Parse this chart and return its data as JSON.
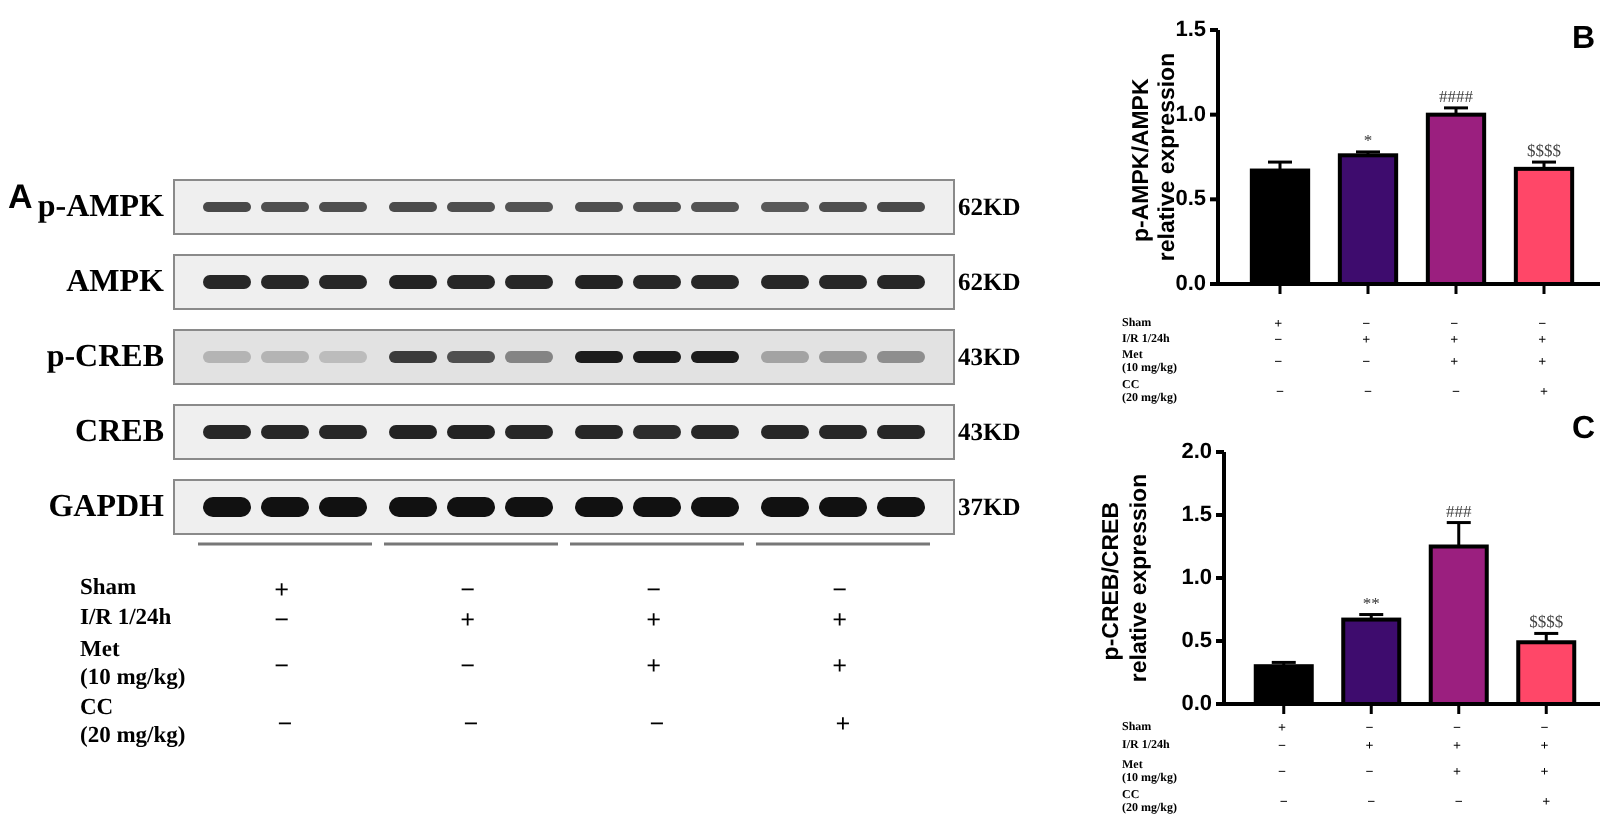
{
  "chart_data": [
    {
      "type": "other",
      "title": "A",
      "y_categories": [
        "p-AMPK",
        "AMPK",
        "p-CREB",
        "CREB",
        "GAPDH"
      ],
      "y2_categories": [
        "62KD",
        "62KD",
        "43KD",
        "43KD",
        "37KD"
      ],
      "categories": [
        "+\n−\n−\n−",
        "−\n+\n−\n−",
        "−\n+\n+\n−",
        "−\n+\n+\n+"
      ],
      "xlabel": "Sham\nI/R 1/24h\nMet (10 mg/kg)\nCC (20 mg/kg)"
    },
    {
      "type": "bar",
      "title": "B",
      "categories": [
        "+\n−\n−\n−",
        "−\n+\n−\n−",
        "−\n+\n+\n−",
        "−\n+\n+\n+"
      ],
      "xlabel": "Sham\nI/R 1/24h\nMet (10 mg/kg)\nCC (20 mg/kg)",
      "ylabel": "p-AMPK/AMPK\nrelative expression",
      "values": [
        0.67,
        0.76,
        1.0,
        0.68
      ],
      "colors": [
        "#000000",
        "#3e0c6e",
        "#9b1f7f",
        "#ff4768"
      ],
      "errors": [
        [
          0.67,
          0.72
        ],
        [
          0.76,
          0.78
        ],
        [
          1.0,
          1.04
        ],
        [
          0.68,
          0.72
        ]
      ],
      "value_labels": [
        null,
        "*",
        "####",
        "$$$$"
      ],
      "ylim": [
        0,
        1.5
      ],
      "yticks": [
        {
          "value": 0,
          "label": "0.0"
        },
        {
          "value": 0.5,
          "label": "0.5"
        },
        {
          "value": 1,
          "label": "1.0"
        },
        {
          "value": 1.5,
          "label": "1.5"
        }
      ]
    },
    {
      "type": "bar",
      "title": "C",
      "categories": [
        "+\n−\n−\n−",
        "−\n+\n−\n−",
        "−\n+\n+\n−",
        "−\n+\n+\n+"
      ],
      "xlabel": "Sham\nI/R 1/24h\nMet (10 mg/kg)\nCC (20 mg/kg)",
      "ylabel": "p-CREB/CREB\nrelative expression",
      "values": [
        0.3,
        0.67,
        1.25,
        0.49
      ],
      "colors": [
        "#000000",
        "#3e0c6e",
        "#9b1f7f",
        "#ff4768"
      ],
      "errors": [
        [
          0.3,
          0.33
        ],
        [
          0.67,
          0.71
        ],
        [
          1.25,
          1.44
        ],
        [
          0.49,
          0.56
        ]
      ],
      "value_labels": [
        null,
        "**",
        "###",
        "$$$$"
      ],
      "ylim": [
        0,
        2
      ],
      "yticks": [
        {
          "value": 0,
          "label": "0.0"
        },
        {
          "value": 0.5,
          "label": "0.5"
        },
        {
          "value": 1,
          "label": "1.0"
        },
        {
          "value": 1.5,
          "label": "1.5"
        },
        {
          "value": 2,
          "label": "2.0"
        }
      ]
    }
  ]
}
